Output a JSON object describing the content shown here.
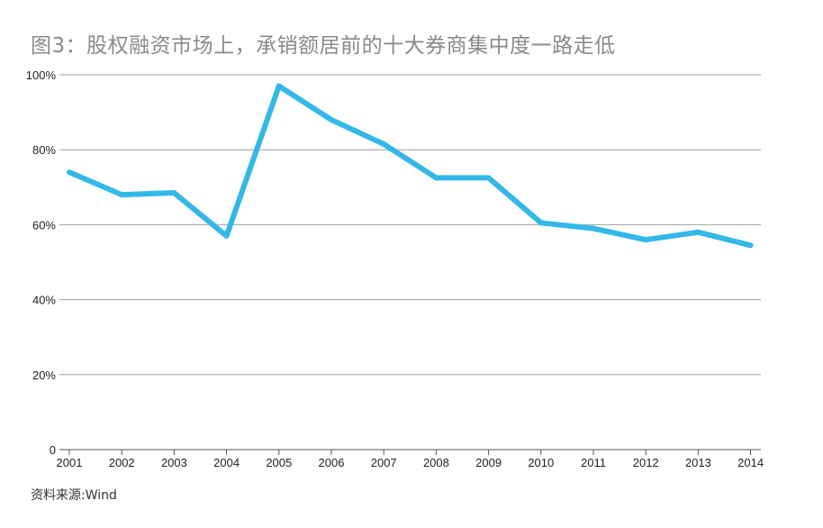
{
  "chart_title": "图3：股权融资市场上，承销额居前的十大券商集中度一路走低",
  "source": "资料来源:Wind",
  "colors": {
    "line": "#33b8e8",
    "grid": "#a0a0a0",
    "axis": "#555555"
  },
  "chart_data": {
    "type": "line",
    "title": "图3：股权融资市场上，承销额居前的十大券商集中度一路走低",
    "xlabel": "",
    "ylabel": "",
    "categories": [
      "2001",
      "2002",
      "2003",
      "2004",
      "2005",
      "2006",
      "2007",
      "2008",
      "2009",
      "2010",
      "2011",
      "2012",
      "2013",
      "2014"
    ],
    "y_tick_labels": [
      "0",
      "20%",
      "40%",
      "60%",
      "80%",
      "100%"
    ],
    "y_ticks": [
      0,
      20,
      40,
      60,
      80,
      100
    ],
    "ylim": [
      0,
      100
    ],
    "grid": true,
    "legend": "none",
    "series": [
      {
        "values": [
          74,
          68,
          68.5,
          57,
          97,
          88,
          81.5,
          72.5,
          72.5,
          60.5,
          59,
          56,
          58,
          54.5
        ]
      }
    ]
  }
}
